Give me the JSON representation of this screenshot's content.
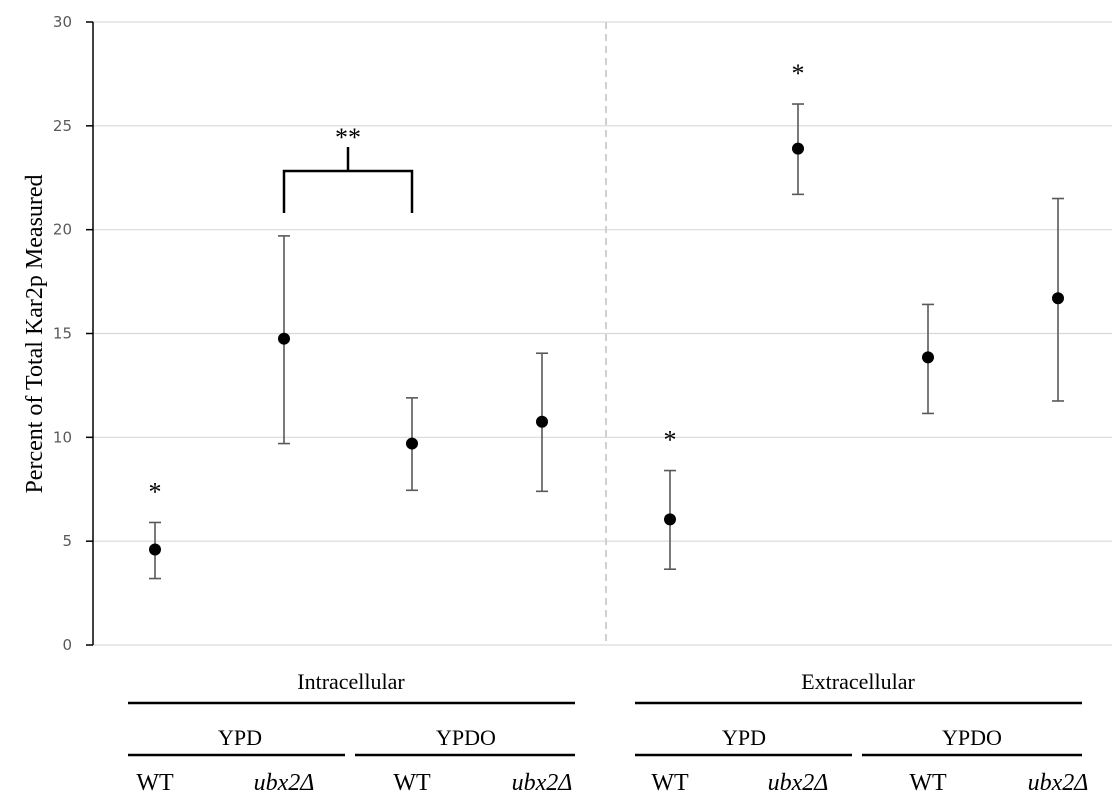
{
  "chart_data": {
    "type": "scatter",
    "title": "",
    "ylabel": "Percent of Total Kar2p Measured",
    "ylim": [
      0,
      30
    ],
    "yticks": [
      0,
      5,
      10,
      15,
      20,
      25,
      30
    ],
    "grid": true,
    "panels": [
      {
        "label": "Intracellular",
        "conditions": [
          {
            "label": "YPD"
          },
          {
            "label": "YPDO"
          }
        ]
      },
      {
        "label": "Extracellular",
        "conditions": [
          {
            "label": "YPD"
          },
          {
            "label": "YPDO"
          }
        ]
      }
    ],
    "points": [
      {
        "panel": "Intracellular",
        "condition": "YPD",
        "strain": "WT",
        "value": 4.6,
        "error_low": 3.2,
        "error_high": 5.9,
        "annotation": "*"
      },
      {
        "panel": "Intracellular",
        "condition": "YPD",
        "strain": "ubx2Δ",
        "value": 14.75,
        "error_low": 9.7,
        "error_high": 19.7,
        "annotation": ""
      },
      {
        "panel": "Intracellular",
        "condition": "YPDO",
        "strain": "WT",
        "value": 9.7,
        "error_low": 7.45,
        "error_high": 11.9,
        "annotation": ""
      },
      {
        "panel": "Intracellular",
        "condition": "YPDO",
        "strain": "ubx2Δ",
        "value": 10.75,
        "error_low": 7.4,
        "error_high": 14.05,
        "annotation": ""
      },
      {
        "panel": "Extracellular",
        "condition": "YPD",
        "strain": "WT",
        "value": 6.05,
        "error_low": 3.65,
        "error_high": 8.4,
        "annotation": "*"
      },
      {
        "panel": "Extracellular",
        "condition": "YPD",
        "strain": "ubx2Δ",
        "value": 23.9,
        "error_low": 21.7,
        "error_high": 26.05,
        "annotation": "*"
      },
      {
        "panel": "Extracellular",
        "condition": "YPDO",
        "strain": "WT",
        "value": 13.85,
        "error_low": 11.15,
        "error_high": 16.4,
        "annotation": ""
      },
      {
        "panel": "Extracellular",
        "condition": "YPDO",
        "strain": "ubx2Δ",
        "value": 16.7,
        "error_low": 11.75,
        "error_high": 21.5,
        "annotation": ""
      }
    ],
    "bracket": {
      "from_point": 1,
      "to_point": 2,
      "label": "**"
    }
  }
}
